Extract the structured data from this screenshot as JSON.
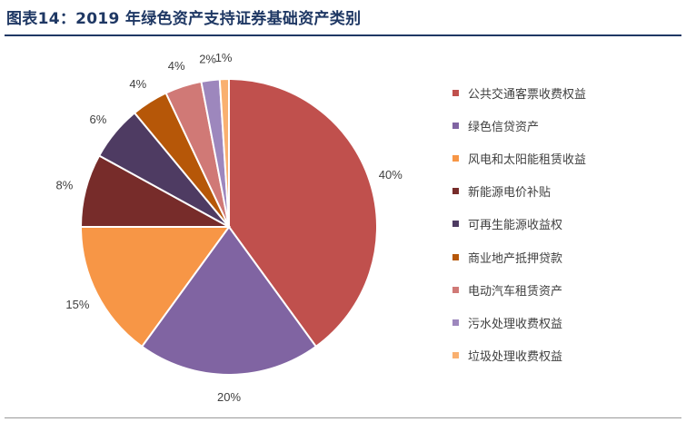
{
  "figure": {
    "title": "图表14：2019 年绿色资产支持证券基础资产类别"
  },
  "chart_data": {
    "type": "pie",
    "title": "图表14：2019 年绿色资产支持证券基础资产类别",
    "legend_position": "right",
    "categories": [
      "公共交通客票收费权益",
      "绿色信贷资产",
      "风电和太阳能租赁收益",
      "新能源电价补贴",
      "可再生能源收益权",
      "商业地产抵押贷款",
      "电动汽车租赁资产",
      "污水处理收费权益",
      "垃圾处理收费权益"
    ],
    "values": [
      40,
      20,
      15,
      8,
      6,
      4,
      4,
      2,
      1
    ],
    "labels": [
      "40%",
      "20%",
      "15%",
      "8%",
      "6%",
      "4%",
      "4%",
      "2%",
      "1%"
    ],
    "colors": [
      "#c0504d",
      "#8064a2",
      "#f79646",
      "#772c2a",
      "#4e3b62",
      "#b65708",
      "#d07976",
      "#9d87bd",
      "#f9b070"
    ]
  }
}
